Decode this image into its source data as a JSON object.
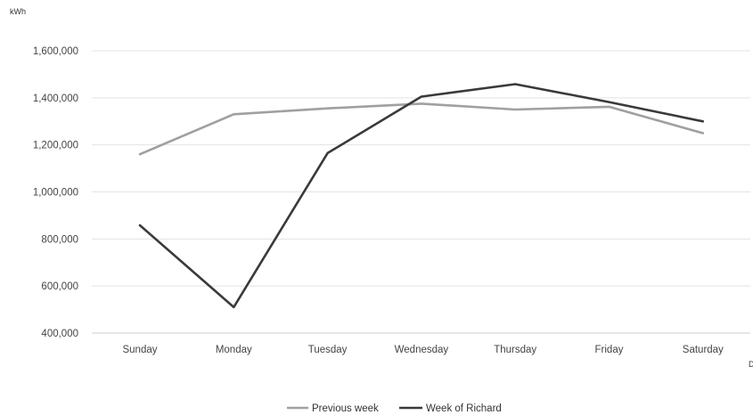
{
  "chart_data": {
    "type": "line",
    "title": "",
    "xlabel": "",
    "ylabel": "kWh",
    "corner_mark": "D",
    "categories": [
      "Sunday",
      "Monday",
      "Tuesday",
      "Wednesday",
      "Thursday",
      "Friday",
      "Saturday"
    ],
    "ylim": [
      400000,
      1600000
    ],
    "yticks": [
      400000,
      600000,
      800000,
      1000000,
      1200000,
      1400000,
      1600000
    ],
    "ytick_labels": [
      "400,000",
      "600,000",
      "800,000",
      "1,000,000",
      "1,200,000",
      "1,400,000",
      "1,600,000"
    ],
    "grid": "horizontal",
    "legend_position": "bottom",
    "series": [
      {
        "name": "Previous week",
        "color": "#a0a0a0",
        "values": [
          1160000,
          1330000,
          1355000,
          1375000,
          1350000,
          1362000,
          1250000
        ]
      },
      {
        "name": "Week of Richard",
        "color": "#3a3a3a",
        "values": [
          858000,
          510000,
          1165000,
          1405000,
          1458000,
          1382000,
          1300000
        ]
      }
    ]
  }
}
